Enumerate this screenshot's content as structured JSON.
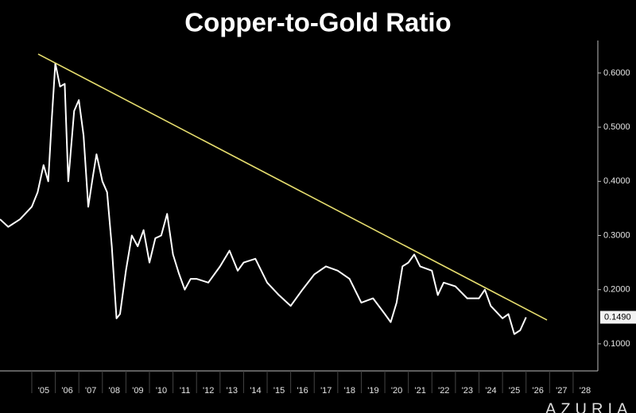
{
  "chart_data": {
    "type": "line",
    "title": "Copper-to-Gold Ratio",
    "series": [
      {
        "color": "#ffffff",
        "x": [
          2003.65,
          2004.0,
          2004.5,
          2005.0,
          2005.25,
          2005.5,
          2005.7,
          2005.85,
          2006.0,
          2006.2,
          2006.4,
          2006.55,
          2006.8,
          2007.0,
          2007.2,
          2007.4,
          2007.6,
          2007.75,
          2008.0,
          2008.2,
          2008.4,
          2008.6,
          2008.75,
          2009.0,
          2009.25,
          2009.5,
          2009.75,
          2010.0,
          2010.25,
          2010.5,
          2010.75,
          2011.0,
          2011.25,
          2011.5,
          2011.75,
          2012.0,
          2012.5,
          2013.0,
          2013.4,
          2013.75,
          2014.0,
          2014.5,
          2015.0,
          2015.5,
          2016.0,
          2016.5,
          2017.0,
          2017.5,
          2018.0,
          2018.5,
          2019.0,
          2019.5,
          2020.0,
          2020.25,
          2020.5,
          2020.75,
          2021.0,
          2021.25,
          2021.5,
          2022.0,
          2022.25,
          2022.5,
          2023.0,
          2023.5,
          2024.0,
          2024.25,
          2024.5,
          2025.0,
          2025.25,
          2025.5,
          2025.75,
          2026.0
        ],
        "values": [
          0.33,
          0.316,
          0.33,
          0.353,
          0.38,
          0.43,
          0.4,
          0.515,
          0.618,
          0.575,
          0.58,
          0.4,
          0.53,
          0.55,
          0.485,
          0.353,
          0.41,
          0.45,
          0.4,
          0.38,
          0.28,
          0.147,
          0.155,
          0.235,
          0.3,
          0.28,
          0.31,
          0.25,
          0.295,
          0.3,
          0.34,
          0.265,
          0.23,
          0.2,
          0.22,
          0.22,
          0.213,
          0.243,
          0.272,
          0.235,
          0.25,
          0.257,
          0.213,
          0.19,
          0.17,
          0.2,
          0.228,
          0.243,
          0.235,
          0.22,
          0.176,
          0.184,
          0.155,
          0.14,
          0.176,
          0.243,
          0.25,
          0.265,
          0.243,
          0.235,
          0.19,
          0.213,
          0.206,
          0.184,
          0.184,
          0.2,
          0.17,
          0.147,
          0.155,
          0.118,
          0.125,
          0.149
        ]
      }
    ],
    "trendline": {
      "x": [
        2005.27,
        2026.89
      ],
      "values": [
        0.635,
        0.144
      ],
      "color": "#e6dd6e"
    },
    "annotations": [
      {
        "x": 2026.0,
        "value": 0.149,
        "label": "0.1490"
      }
    ],
    "xlim": [
      2003.65,
      2029.05
    ],
    "ylim": [
      0.05,
      0.66
    ],
    "xticks": [
      {
        "value": 2005,
        "label": "'05"
      },
      {
        "value": 2006,
        "label": "'06"
      },
      {
        "value": 2007,
        "label": "'07"
      },
      {
        "value": 2008,
        "label": "'08"
      },
      {
        "value": 2009,
        "label": "'09"
      },
      {
        "value": 2010,
        "label": "'10"
      },
      {
        "value": 2011,
        "label": "'11"
      },
      {
        "value": 2012,
        "label": "'12"
      },
      {
        "value": 2013,
        "label": "'13"
      },
      {
        "value": 2014,
        "label": "'14"
      },
      {
        "value": 2015,
        "label": "'15"
      },
      {
        "value": 2016,
        "label": "'16"
      },
      {
        "value": 2017,
        "label": "'17"
      },
      {
        "value": 2018,
        "label": "'18"
      },
      {
        "value": 2019,
        "label": "'19"
      },
      {
        "value": 2020,
        "label": "'20"
      },
      {
        "value": 2021,
        "label": "'21"
      },
      {
        "value": 2022,
        "label": "'22"
      },
      {
        "value": 2023,
        "label": "'23"
      },
      {
        "value": 2024,
        "label": "'24"
      },
      {
        "value": 2025,
        "label": "'25"
      },
      {
        "value": 2026,
        "label": "'26"
      },
      {
        "value": 2027,
        "label": "'27"
      },
      {
        "value": 2028,
        "label": "'28"
      }
    ],
    "yticks": [
      {
        "value": 0.1,
        "label": "0.1000"
      },
      {
        "value": 0.2,
        "label": "0.2000"
      },
      {
        "value": 0.3,
        "label": "0.3000"
      },
      {
        "value": 0.4,
        "label": "0.4000"
      },
      {
        "value": 0.5,
        "label": "0.5000"
      },
      {
        "value": 0.6,
        "label": "0.6000"
      }
    ],
    "y_axis_side": "right",
    "grid": false,
    "watermark": "AZURIA"
  }
}
